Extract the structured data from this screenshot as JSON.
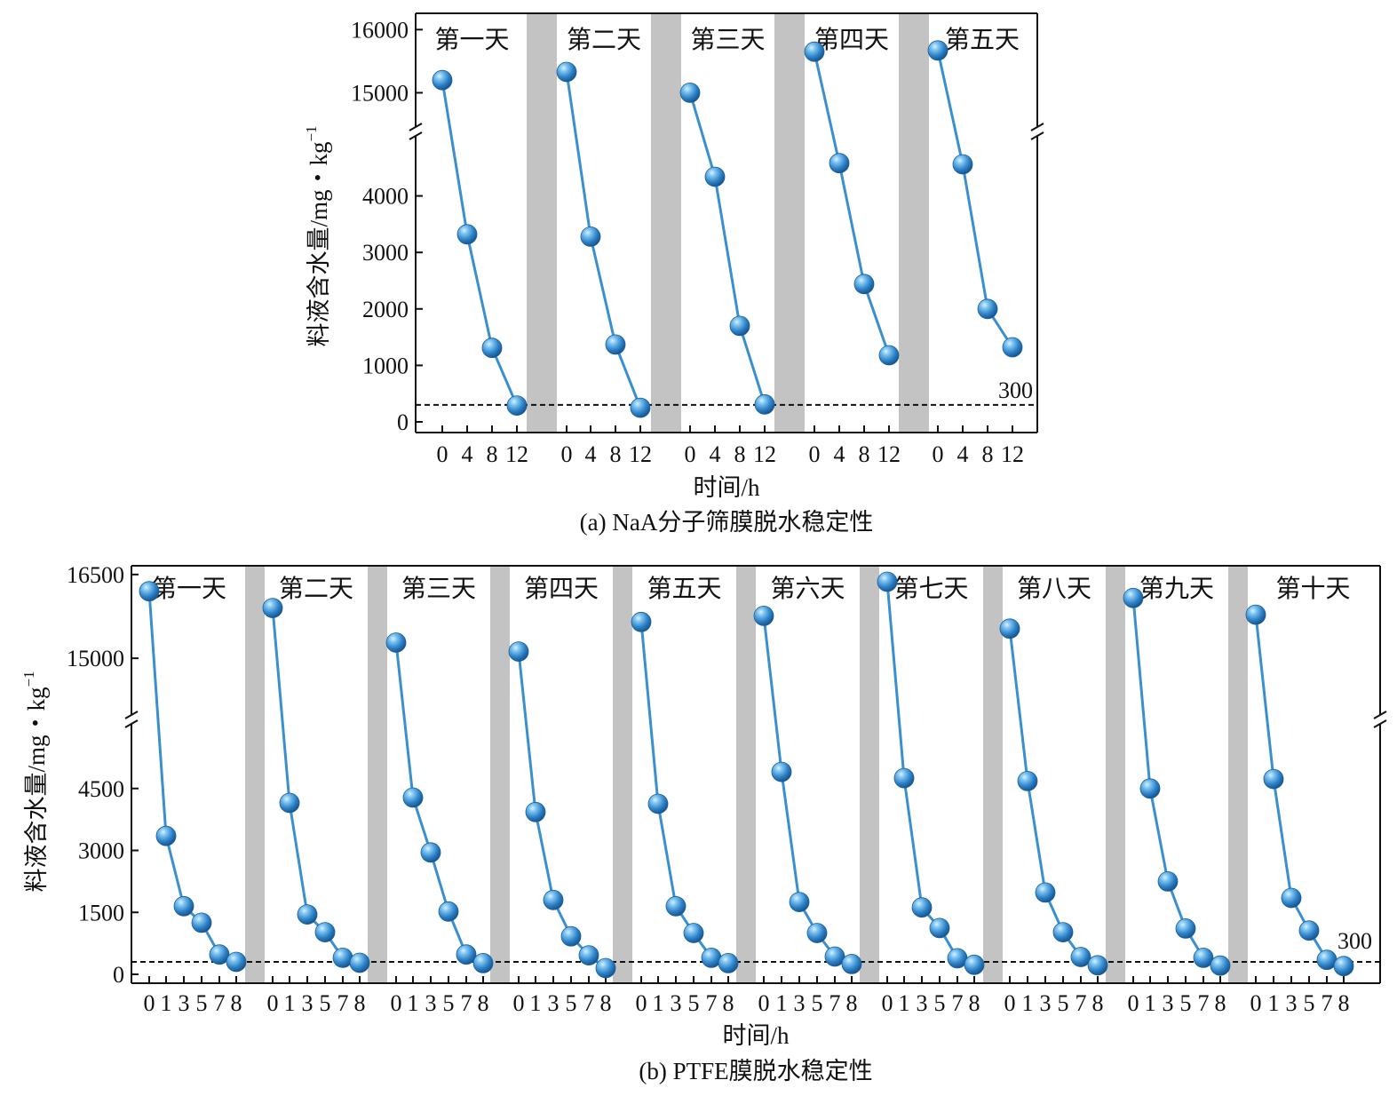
{
  "captions": {
    "a": "(a) NaA分子筛膜脱水稳定性",
    "b": "(b) PTFE膜脱水稳定性"
  },
  "colors": {
    "line": "#3a8fce",
    "marker": "#2b7fc4",
    "marker_highlight": "#bfe3fb",
    "separator": "#c3c3c3",
    "reference": "#111111"
  },
  "chart_data": [
    {
      "type": "line",
      "panel": "a",
      "xlabel": "时间/h",
      "ylabel": "料液含水量/mg・kg",
      "ylabel_sup": "−1",
      "y_broken_axis": {
        "lower_range": [
          0,
          5000
        ],
        "upper_range": [
          14500,
          16300
        ],
        "lower_ticks": [
          0,
          1000,
          2000,
          3000,
          4000
        ],
        "upper_ticks": [
          15000,
          16000
        ]
      },
      "reference_line": {
        "y": 300,
        "label": "300"
      },
      "x_tick_labels": [
        "0",
        "4",
        "8",
        "12"
      ],
      "categories": [
        "第一天",
        "第二天",
        "第三天",
        "第四天",
        "第五天"
      ],
      "series": [
        {
          "x": [
            0,
            4,
            8,
            12
          ],
          "values": [
            15200,
            3320,
            1310,
            290
          ]
        },
        {
          "x": [
            0,
            4,
            8,
            12
          ],
          "values": [
            15330,
            3280,
            1370,
            250
          ]
        },
        {
          "x": [
            0,
            4,
            8,
            12
          ],
          "values": [
            15000,
            4340,
            1700,
            310
          ]
        },
        {
          "x": [
            0,
            4,
            8,
            12
          ],
          "values": [
            15650,
            4580,
            2440,
            1180
          ]
        },
        {
          "x": [
            0,
            4,
            8,
            12
          ],
          "values": [
            15670,
            4560,
            2000,
            1320
          ]
        }
      ]
    },
    {
      "type": "line",
      "panel": "b",
      "xlabel": "时间/h",
      "ylabel": "料液含水量/mg・kg",
      "ylabel_sup": "−1",
      "y_broken_axis": {
        "lower_range": [
          0,
          6000
        ],
        "upper_range": [
          14000,
          16800
        ],
        "lower_ticks": [
          0,
          1500,
          3000,
          4500
        ],
        "upper_ticks": [
          15000,
          16500
        ]
      },
      "reference_line": {
        "y": 300,
        "label": "300"
      },
      "x_tick_labels": [
        "0",
        "1",
        "3",
        "5",
        "7",
        "8"
      ],
      "categories": [
        "第一天",
        "第二天",
        "第三天",
        "第四天",
        "第五天",
        "第六天",
        "第七天",
        "第八天",
        "第九天",
        "第十天"
      ],
      "series": [
        {
          "x": [
            0,
            1,
            3,
            5,
            7,
            8
          ],
          "values": [
            16200,
            3350,
            1650,
            1250,
            480,
            300
          ]
        },
        {
          "x": [
            0,
            1,
            3,
            5,
            7,
            8
          ],
          "values": [
            15900,
            4150,
            1450,
            1020,
            400,
            280
          ]
        },
        {
          "x": [
            0,
            1,
            3,
            5,
            7,
            8
          ],
          "values": [
            15280,
            4280,
            2950,
            1520,
            480,
            270
          ]
        },
        {
          "x": [
            0,
            1,
            3,
            5,
            7,
            8
          ],
          "values": [
            15120,
            3930,
            1800,
            920,
            460,
            150
          ]
        },
        {
          "x": [
            0,
            1,
            3,
            5,
            7,
            8
          ],
          "values": [
            15650,
            4130,
            1650,
            1000,
            400,
            270
          ]
        },
        {
          "x": [
            0,
            1,
            3,
            5,
            7,
            8
          ],
          "values": [
            15760,
            4900,
            1750,
            1000,
            430,
            250
          ]
        },
        {
          "x": [
            0,
            1,
            3,
            5,
            7,
            8
          ],
          "values": [
            16370,
            4750,
            1620,
            1120,
            390,
            230
          ]
        },
        {
          "x": [
            0,
            1,
            3,
            5,
            7,
            8
          ],
          "values": [
            15530,
            4680,
            1980,
            1020,
            420,
            220
          ]
        },
        {
          "x": [
            0,
            1,
            3,
            5,
            7,
            8
          ],
          "values": [
            16080,
            4500,
            2250,
            1110,
            400,
            210
          ]
        },
        {
          "x": [
            0,
            1,
            3,
            5,
            7,
            8
          ],
          "values": [
            15780,
            4730,
            1850,
            1060,
            350,
            200
          ]
        }
      ]
    }
  ]
}
